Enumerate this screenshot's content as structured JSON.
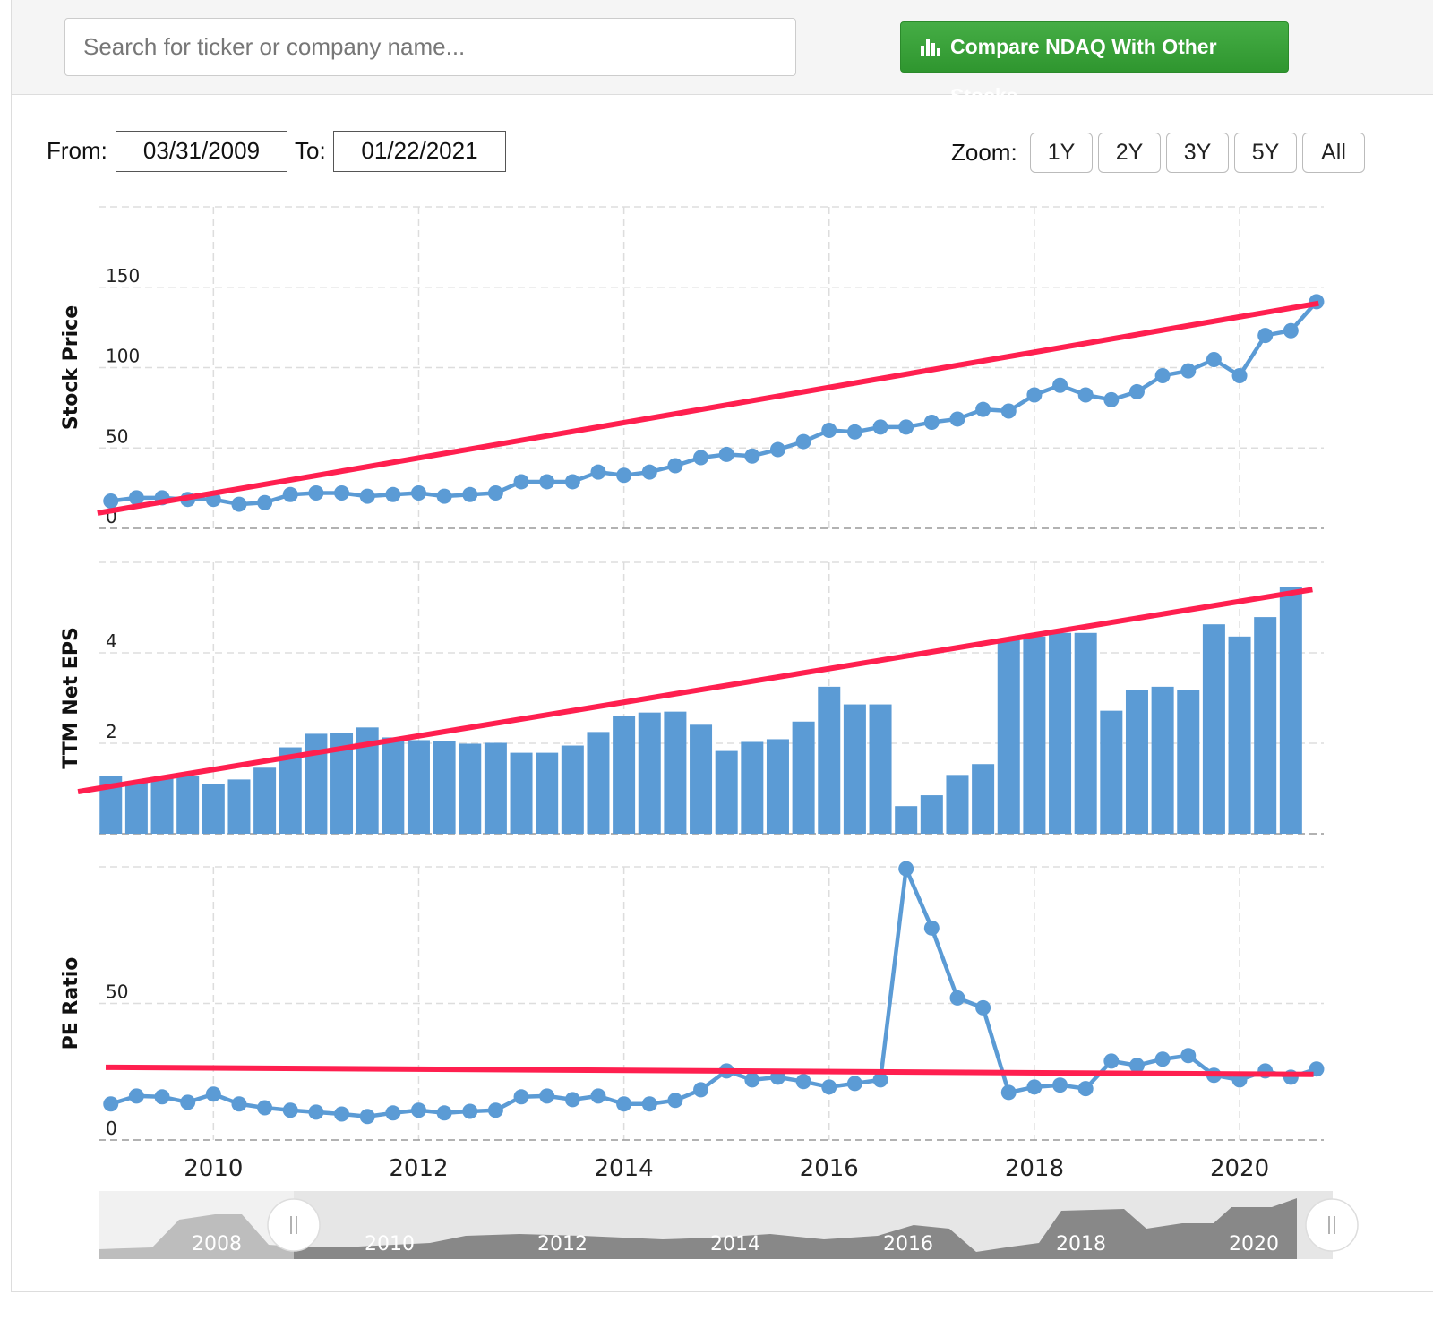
{
  "search": {
    "placeholder": "Search for ticker or company name..."
  },
  "compare_button": "Compare NDAQ With Other Stocks",
  "range": {
    "from_label": "From:",
    "from": "03/31/2009",
    "to_label": "To:",
    "to": "01/22/2021"
  },
  "zoom": {
    "label": "Zoom:",
    "buttons": [
      "1Y",
      "2Y",
      "3Y",
      "5Y",
      "All"
    ]
  },
  "chart_data": [
    {
      "type": "line",
      "y_label": "Stock Price",
      "color": "#5b9bd5",
      "x": [
        2009,
        2009.25,
        2009.5,
        2009.75,
        2010,
        2010.25,
        2010.5,
        2010.75,
        2011,
        2011.25,
        2011.5,
        2011.75,
        2012,
        2012.25,
        2012.5,
        2012.75,
        2013,
        2013.25,
        2013.5,
        2013.75,
        2014,
        2014.25,
        2014.5,
        2014.75,
        2015,
        2015.25,
        2015.5,
        2015.75,
        2016,
        2016.25,
        2016.5,
        2016.75,
        2017,
        2017.25,
        2017.5,
        2017.75,
        2018,
        2018.25,
        2018.5,
        2018.75,
        2019,
        2019.25,
        2019.5,
        2019.75,
        2020,
        2020.25,
        2020.5,
        2020.75
      ],
      "values": [
        17,
        19,
        19,
        18,
        18,
        15,
        16,
        21,
        22,
        22,
        20,
        21,
        22,
        20,
        21,
        22,
        29,
        29,
        29,
        35,
        33,
        35,
        39,
        44,
        46,
        45,
        49,
        54,
        61,
        60,
        63,
        63,
        66,
        68,
        74,
        73,
        83,
        89,
        83,
        80,
        85,
        95,
        98,
        105,
        95,
        120,
        123,
        141
      ],
      "xlim": [
        2008.88,
        2020.82
      ],
      "xticks": [
        2010,
        2012,
        2014,
        2016,
        2018,
        2020
      ],
      "ylim": [
        0,
        200
      ],
      "yticks": [
        0,
        50,
        100,
        150
      ],
      "grid": true,
      "trendline": {
        "color": "#ff1f4f",
        "x": [
          2008.87,
          2020.77
        ],
        "values": [
          9.5,
          140
        ]
      }
    },
    {
      "type": "bar",
      "y_label": "TTM Net EPS",
      "color": "#5b9bd5",
      "x": [
        2009,
        2009.25,
        2009.5,
        2009.75,
        2010,
        2010.25,
        2010.5,
        2010.75,
        2011,
        2011.25,
        2011.5,
        2011.75,
        2012,
        2012.25,
        2012.5,
        2012.75,
        2013,
        2013.25,
        2013.5,
        2013.75,
        2014,
        2014.25,
        2014.5,
        2014.75,
        2015,
        2015.25,
        2015.5,
        2015.75,
        2016,
        2016.25,
        2016.5,
        2016.75,
        2017,
        2017.25,
        2017.5,
        2017.75,
        2018,
        2018.25,
        2018.5,
        2018.75,
        2019,
        2019.25,
        2019.5,
        2019.75,
        2020,
        2020.25,
        2020.5,
        2020.75
      ],
      "values": [
        1.28,
        1.16,
        1.24,
        1.28,
        1.1,
        1.2,
        1.46,
        1.91,
        2.21,
        2.23,
        2.35,
        2.13,
        2.07,
        2.05,
        1.99,
        2.01,
        1.79,
        1.79,
        1.95,
        2.25,
        2.6,
        2.68,
        2.7,
        2.41,
        1.83,
        2.03,
        2.09,
        2.48,
        3.25,
        2.86,
        2.86,
        0.61,
        0.85,
        1.3,
        1.54,
        4.28,
        4.36,
        4.44,
        4.44,
        2.72,
        3.18,
        3.25,
        3.18,
        4.63,
        4.36,
        4.79,
        5.46,
        null
      ],
      "xlim": [
        2008.88,
        2020.82
      ],
      "xticks": [
        2010,
        2012,
        2014,
        2016,
        2018,
        2020
      ],
      "ylim": [
        0,
        6
      ],
      "yticks": [
        0,
        2,
        4
      ],
      "grid": true,
      "trendline": {
        "color": "#ff1f4f",
        "x": [
          2008.68,
          2020.71
        ],
        "values": [
          0.93,
          5.4
        ]
      }
    },
    {
      "type": "line",
      "y_label": "PE Ratio",
      "color": "#5b9bd5",
      "x": [
        2009,
        2009.25,
        2009.5,
        2009.75,
        2010,
        2010.25,
        2010.5,
        2010.75,
        2011,
        2011.25,
        2011.5,
        2011.75,
        2012,
        2012.25,
        2012.5,
        2012.75,
        2013,
        2013.25,
        2013.5,
        2013.75,
        2014,
        2014.25,
        2014.5,
        2014.75,
        2015,
        2015.25,
        2015.5,
        2015.75,
        2016,
        2016.25,
        2016.5,
        2016.75,
        2017,
        2017.25,
        2017.5,
        2017.75,
        2018,
        2018.25,
        2018.5,
        2018.75,
        2019,
        2019.25,
        2019.5,
        2019.75,
        2020,
        2020.25,
        2020.5,
        2020.75
      ],
      "values": [
        13.2,
        16.1,
        15.8,
        13.8,
        16.8,
        13.2,
        11.8,
        10.9,
        10.2,
        9.5,
        8.6,
        9.9,
        10.9,
        9.9,
        10.5,
        10.9,
        15.8,
        16.1,
        14.8,
        16.1,
        13.2,
        13.2,
        14.5,
        18.4,
        25.3,
        22,
        23,
        21.4,
        19.4,
        20.7,
        22,
        99.3,
        77.6,
        52,
        48.4,
        17.4,
        19.4,
        20.1,
        18.8,
        28.9,
        27.3,
        29.6,
        30.9,
        23.7,
        22,
        25.3,
        23,
        26
      ],
      "xlim": [
        2008.88,
        2020.82
      ],
      "xticks": [
        2010,
        2012,
        2014,
        2016,
        2018,
        2020
      ],
      "ylim": [
        0,
        100
      ],
      "yticks": [
        0,
        50
      ],
      "grid": true,
      "trendline": {
        "color": "#ff1f4f",
        "x": [
          2008.95,
          2020.72
        ],
        "values": [
          26.6,
          24
        ]
      }
    }
  ],
  "navigator": {
    "labels": [
      "2008",
      "2010",
      "2012",
      "2014",
      "2016",
      "2018",
      "2020"
    ]
  }
}
